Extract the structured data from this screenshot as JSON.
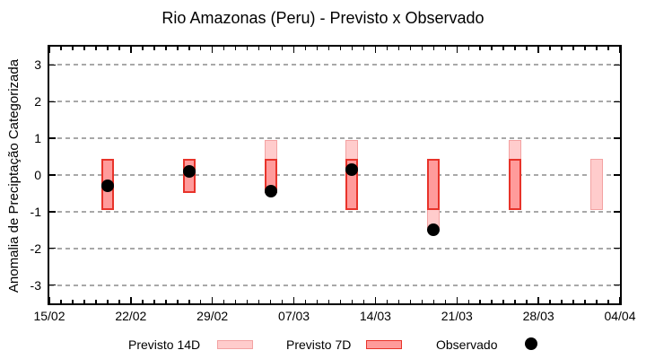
{
  "chart_data": {
    "type": "bar",
    "title": "Rio Amazonas (Peru) - Previsto x Observado",
    "ylabel": "Anomalia de Preciptação Categorizada",
    "ylim": [
      -3.5,
      3.5
    ],
    "yticks": [
      3,
      2,
      1,
      0,
      -1,
      -2,
      -3
    ],
    "xtick_labels": [
      "15/02",
      "22/02",
      "29/02",
      "07/03",
      "14/03",
      "21/03",
      "28/03",
      "04/04"
    ],
    "x_total_days": 49,
    "x_minor_tick_every_days": 1,
    "grid": {
      "horizontal": true,
      "style": "dashed",
      "color": "#a8a8a8"
    },
    "legend_position": "bottom",
    "series": [
      {
        "name": "Previsto 14D",
        "type": "range-bar",
        "fill": "#ffcccc",
        "border": "#f3a2a2",
        "points": [
          {
            "date": "20/02",
            "low": -0.95,
            "high": 0.45
          },
          {
            "date": "27/02",
            "low": -0.5,
            "high": 0.45
          },
          {
            "date": "05/03",
            "low": -0.5,
            "high": 0.95
          },
          {
            "date": "12/03",
            "low": -0.95,
            "high": 0.95
          },
          {
            "date": "19/03",
            "low": -1.45,
            "high": 0.45
          },
          {
            "date": "26/03",
            "low": -0.95,
            "high": 0.95
          },
          {
            "date": "02/04",
            "low": -0.95,
            "high": 0.45
          }
        ]
      },
      {
        "name": "Previsto 7D",
        "type": "range-bar",
        "fill": "#ff9b9b",
        "border": "#e8332a",
        "points": [
          {
            "date": "20/02",
            "low": -0.95,
            "high": 0.45
          },
          {
            "date": "27/02",
            "low": -0.5,
            "high": 0.45
          },
          {
            "date": "05/03",
            "low": -0.5,
            "high": 0.45
          },
          {
            "date": "12/03",
            "low": -0.95,
            "high": 0.45
          },
          {
            "date": "19/03",
            "low": -0.95,
            "high": 0.45
          },
          {
            "date": "26/03",
            "low": -0.95,
            "high": 0.45
          }
        ]
      },
      {
        "name": "Observado",
        "type": "scatter",
        "color": "#000000",
        "points": [
          {
            "date": "20/02",
            "value": -0.3
          },
          {
            "date": "27/02",
            "value": 0.1
          },
          {
            "date": "05/03",
            "value": -0.45
          },
          {
            "date": "12/03",
            "value": 0.15
          },
          {
            "date": "19/03",
            "value": -1.5
          }
        ]
      }
    ]
  }
}
